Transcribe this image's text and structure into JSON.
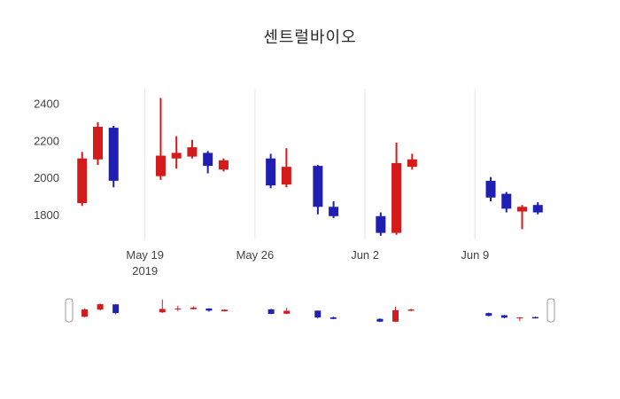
{
  "chart_data": {
    "type": "candlestick",
    "title": "센트럴바이오",
    "increasing_color": "#d41a1a",
    "decreasing_color": "#1f1fb4",
    "grid_color": "#e6e6e6",
    "tick_color": "#444444",
    "ylim": [
      1670,
      2480
    ],
    "yticks": [
      1800,
      2000,
      2200,
      2400
    ],
    "xlim": [
      "2019-05-14",
      "2019-06-14"
    ],
    "xticks": [
      {
        "label": "May 19",
        "sublabel": "2019",
        "date": "2019-05-19"
      },
      {
        "label": "May 26",
        "date": "2019-05-26"
      },
      {
        "label": "Jun 2",
        "date": "2019-06-02"
      },
      {
        "label": "Jun 9",
        "date": "2019-06-09"
      }
    ],
    "rangeslider": true,
    "candles": [
      {
        "date": "2019-05-15",
        "open": 1865,
        "high": 2140,
        "low": 1850,
        "close": 2105
      },
      {
        "date": "2019-05-16",
        "open": 2100,
        "high": 2300,
        "low": 2070,
        "close": 2275
      },
      {
        "date": "2019-05-17",
        "open": 2270,
        "high": 2280,
        "low": 1950,
        "close": 1985
      },
      {
        "date": "2019-05-20",
        "open": 2010,
        "high": 2430,
        "low": 1990,
        "close": 2120
      },
      {
        "date": "2019-05-21",
        "open": 2105,
        "high": 2225,
        "low": 2050,
        "close": 2135
      },
      {
        "date": "2019-05-22",
        "open": 2115,
        "high": 2205,
        "low": 2105,
        "close": 2165
      },
      {
        "date": "2019-05-23",
        "open": 2135,
        "high": 2145,
        "low": 2025,
        "close": 2065
      },
      {
        "date": "2019-05-24",
        "open": 2045,
        "high": 2105,
        "low": 2035,
        "close": 2095
      },
      {
        "date": "2019-05-27",
        "open": 2105,
        "high": 2130,
        "low": 1945,
        "close": 1960
      },
      {
        "date": "2019-05-28",
        "open": 1965,
        "high": 2160,
        "low": 1950,
        "close": 2060
      },
      {
        "date": "2019-05-30",
        "open": 2065,
        "high": 2070,
        "low": 1805,
        "close": 1845
      },
      {
        "date": "2019-05-31",
        "open": 1845,
        "high": 1875,
        "low": 1785,
        "close": 1795
      },
      {
        "date": "2019-06-03",
        "open": 1795,
        "high": 1815,
        "low": 1690,
        "close": 1705
      },
      {
        "date": "2019-06-04",
        "open": 1705,
        "high": 2190,
        "low": 1695,
        "close": 2080
      },
      {
        "date": "2019-06-05",
        "open": 2060,
        "high": 2130,
        "low": 2045,
        "close": 2100
      },
      {
        "date": "2019-06-10",
        "open": 1985,
        "high": 2005,
        "low": 1875,
        "close": 1895
      },
      {
        "date": "2019-06-11",
        "open": 1915,
        "high": 1925,
        "low": 1815,
        "close": 1835
      },
      {
        "date": "2019-06-12",
        "open": 1820,
        "high": 1855,
        "low": 1725,
        "close": 1845
      },
      {
        "date": "2019-06-13",
        "open": 1855,
        "high": 1870,
        "low": 1805,
        "close": 1815
      }
    ]
  }
}
